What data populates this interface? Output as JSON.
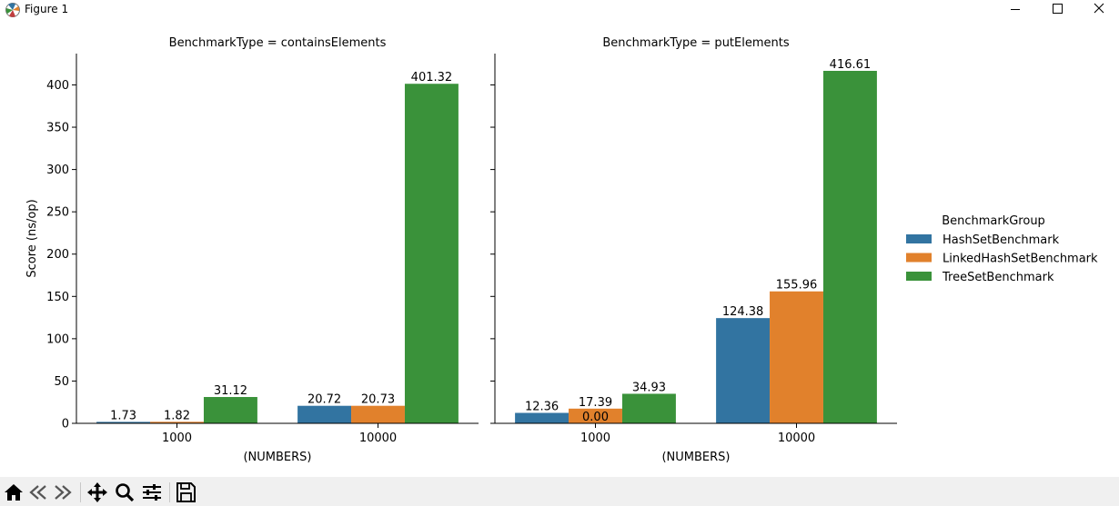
{
  "window": {
    "title": "Figure 1"
  },
  "toolbar": {
    "items": [
      {
        "name": "home-icon"
      },
      {
        "name": "back-icon"
      },
      {
        "name": "forward-icon"
      },
      {
        "name": "pan-icon"
      },
      {
        "name": "zoom-icon"
      },
      {
        "name": "configure-subplots-icon"
      },
      {
        "name": "save-icon"
      }
    ]
  },
  "chart_data": {
    "type": "bar",
    "ylabel": "Score (ns/op)",
    "xlabel": "(NUMBERS)",
    "ylim": [
      0,
      437
    ],
    "yticks": [
      0,
      50,
      100,
      150,
      200,
      250,
      300,
      350,
      400
    ],
    "categories": [
      "1000",
      "10000"
    ],
    "grid": false,
    "legend": {
      "title": "BenchmarkGroup",
      "placement": "right",
      "entries": [
        {
          "name": "HashSetBenchmark",
          "color": "#3274a1"
        },
        {
          "name": "LinkedHashSetBenchmark",
          "color": "#e1812c"
        },
        {
          "name": "TreeSetBenchmark",
          "color": "#3a923a"
        }
      ]
    },
    "panels": [
      {
        "title": "BenchmarkType = containsElements",
        "series": [
          {
            "name": "HashSetBenchmark",
            "values": [
              1.73,
              20.72
            ],
            "labels": [
              "1.73",
              "20.72"
            ]
          },
          {
            "name": "LinkedHashSetBenchmark",
            "values": [
              1.82,
              20.73
            ],
            "labels": [
              "1.82",
              "20.73"
            ]
          },
          {
            "name": "TreeSetBenchmark",
            "values": [
              31.12,
              401.32
            ],
            "labels": [
              "31.12",
              "401.32"
            ]
          }
        ],
        "extra_labels": []
      },
      {
        "title": "BenchmarkType = putElements",
        "series": [
          {
            "name": "HashSetBenchmark",
            "values": [
              12.36,
              124.38
            ],
            "labels": [
              "12.36",
              "124.38"
            ]
          },
          {
            "name": "LinkedHashSetBenchmark",
            "values": [
              17.39,
              155.96
            ],
            "labels": [
              "17.39",
              "155.96"
            ]
          },
          {
            "name": "TreeSetBenchmark",
            "values": [
              34.93,
              416.61
            ],
            "labels": [
              "34.93",
              "416.61"
            ]
          }
        ],
        "extra_labels": [
          {
            "text": "0.00",
            "series": 1,
            "category": 0,
            "value": 0
          }
        ]
      }
    ]
  }
}
